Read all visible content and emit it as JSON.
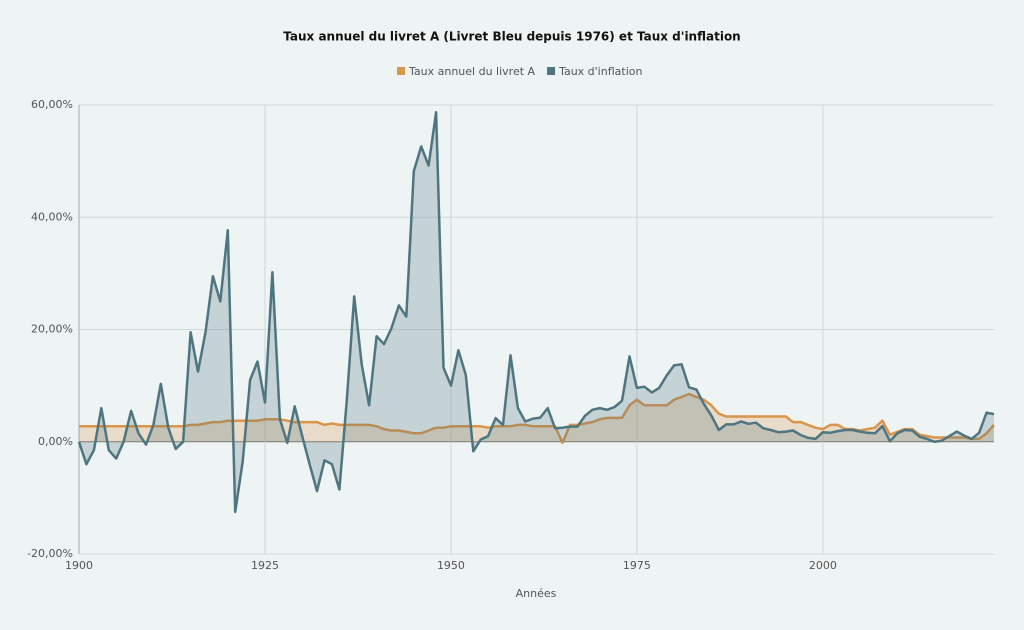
{
  "chart_data": {
    "type": "area",
    "title": "Taux annuel du livret A (Livret Bleu depuis 1976) et Taux d'inflation",
    "x_label": "Années",
    "x": [
      1900,
      1901,
      1902,
      1903,
      1904,
      1905,
      1906,
      1907,
      1908,
      1909,
      1910,
      1911,
      1912,
      1913,
      1914,
      1915,
      1916,
      1917,
      1918,
      1919,
      1920,
      1921,
      1922,
      1923,
      1924,
      1925,
      1926,
      1927,
      1928,
      1929,
      1930,
      1931,
      1932,
      1933,
      1934,
      1935,
      1936,
      1937,
      1938,
      1939,
      1940,
      1941,
      1942,
      1943,
      1944,
      1945,
      1946,
      1947,
      1948,
      1949,
      1950,
      1951,
      1952,
      1953,
      1954,
      1955,
      1956,
      1957,
      1958,
      1959,
      1960,
      1961,
      1962,
      1963,
      1964,
      1965,
      1966,
      1967,
      1968,
      1969,
      1970,
      1971,
      1972,
      1973,
      1974,
      1975,
      1976,
      1977,
      1978,
      1979,
      1980,
      1981,
      1982,
      1983,
      1984,
      1985,
      1986,
      1987,
      1988,
      1989,
      1990,
      1991,
      1992,
      1993,
      1994,
      1995,
      1996,
      1997,
      1998,
      1999,
      2000,
      2001,
      2002,
      2003,
      2004,
      2005,
      2006,
      2007,
      2008,
      2009,
      2010,
      2011,
      2012,
      2013,
      2014,
      2015,
      2016,
      2017,
      2018,
      2019,
      2020,
      2021,
      2022,
      2023
    ],
    "series": [
      {
        "name": "Taux annuel du livret A",
        "color": "#d9954a",
        "values": [
          2.75,
          2.75,
          2.75,
          2.75,
          2.75,
          2.75,
          2.75,
          2.75,
          2.75,
          2.75,
          2.75,
          2.75,
          2.75,
          2.75,
          2.75,
          3,
          3,
          3.25,
          3.5,
          3.5,
          3.75,
          3.75,
          3.75,
          3.75,
          3.75,
          4,
          4,
          4,
          3.75,
          3.5,
          3.5,
          3.5,
          3.5,
          3,
          3.25,
          3,
          3,
          3,
          3,
          3,
          2.75,
          2.25,
          2,
          2,
          1.75,
          1.5,
          1.5,
          2,
          2.5,
          2.5,
          2.75,
          2.75,
          2.75,
          2.75,
          2.75,
          2.5,
          2.75,
          2.75,
          2.75,
          3,
          3,
          2.75,
          2.75,
          2.75,
          2.75,
          -0.2,
          3,
          3,
          3.25,
          3.5,
          4,
          4.25,
          4.25,
          4.25,
          6.5,
          7.5,
          6.5,
          6.5,
          6.5,
          6.5,
          7.5,
          8,
          8.5,
          8,
          7.5,
          6.5,
          5,
          4.5,
          4.5,
          4.5,
          4.5,
          4.5,
          4.5,
          4.5,
          4.5,
          4.5,
          3.5,
          3.5,
          3,
          2.5,
          2.25,
          3,
          3,
          2.25,
          2.25,
          2,
          2.25,
          2.5,
          3.75,
          1.25,
          1.75,
          2.25,
          2.25,
          1.25,
          1,
          0.75,
          0.75,
          0.75,
          0.75,
          0.75,
          0.5,
          0.5,
          1.5,
          3
        ]
      },
      {
        "name": "Taux d'inflation",
        "color": "#4e7580",
        "values": [
          0,
          -4,
          -1.5,
          6,
          -1.5,
          -3,
          0,
          5.5,
          1.5,
          -0.5,
          3,
          10.3,
          2.5,
          -1.3,
          0,
          19.5,
          12.5,
          19.5,
          29.5,
          25,
          37.7,
          -12.5,
          -3.5,
          11,
          14.3,
          7,
          30.2,
          4,
          -0.2,
          6.3,
          1,
          -4,
          -8.8,
          -3.3,
          -4,
          -8.5,
          7.4,
          25.9,
          13.8,
          6.5,
          18.8,
          17.4,
          20.2,
          24.3,
          22.3,
          48.2,
          52.6,
          49.2,
          58.7,
          13.2,
          10,
          16.3,
          11.9,
          -1.7,
          0.4,
          1,
          4.2,
          3,
          15.4,
          6,
          3.6,
          4.1,
          4.3,
          6,
          2.4,
          2.5,
          2.7,
          2.7,
          4.6,
          5.7,
          6,
          5.7,
          6.2,
          7.3,
          15.2,
          9.6,
          9.8,
          8.8,
          9.6,
          11.8,
          13.6,
          13.8,
          9.7,
          9.3,
          6.7,
          4.7,
          2.1,
          3.1,
          3.1,
          3.6,
          3.2,
          3.4,
          2.4,
          2.1,
          1.7,
          1.8,
          2,
          1.2,
          0.7,
          0.5,
          1.7,
          1.6,
          1.9,
          2.1,
          2.1,
          1.8,
          1.6,
          1.5,
          2.8,
          0.1,
          1.5,
          2.1,
          2,
          0.9,
          0.5,
          0,
          0.2,
          1,
          1.8,
          1.1,
          0.5,
          1.6,
          5.2,
          4.9
        ]
      }
    ],
    "xlim": [
      1900,
      2023
    ],
    "xticks": [
      1900,
      1925,
      1950,
      1975,
      2000
    ],
    "ylim": [
      -20,
      60
    ],
    "yticks": [
      {
        "value": -20,
        "label": "-20,00%"
      },
      {
        "value": 0,
        "label": "0,00%"
      },
      {
        "value": 20,
        "label": "20,00%"
      },
      {
        "value": 40,
        "label": "40,00%"
      },
      {
        "value": 60,
        "label": "60,00%"
      }
    ],
    "grid": true,
    "legend": "top"
  }
}
